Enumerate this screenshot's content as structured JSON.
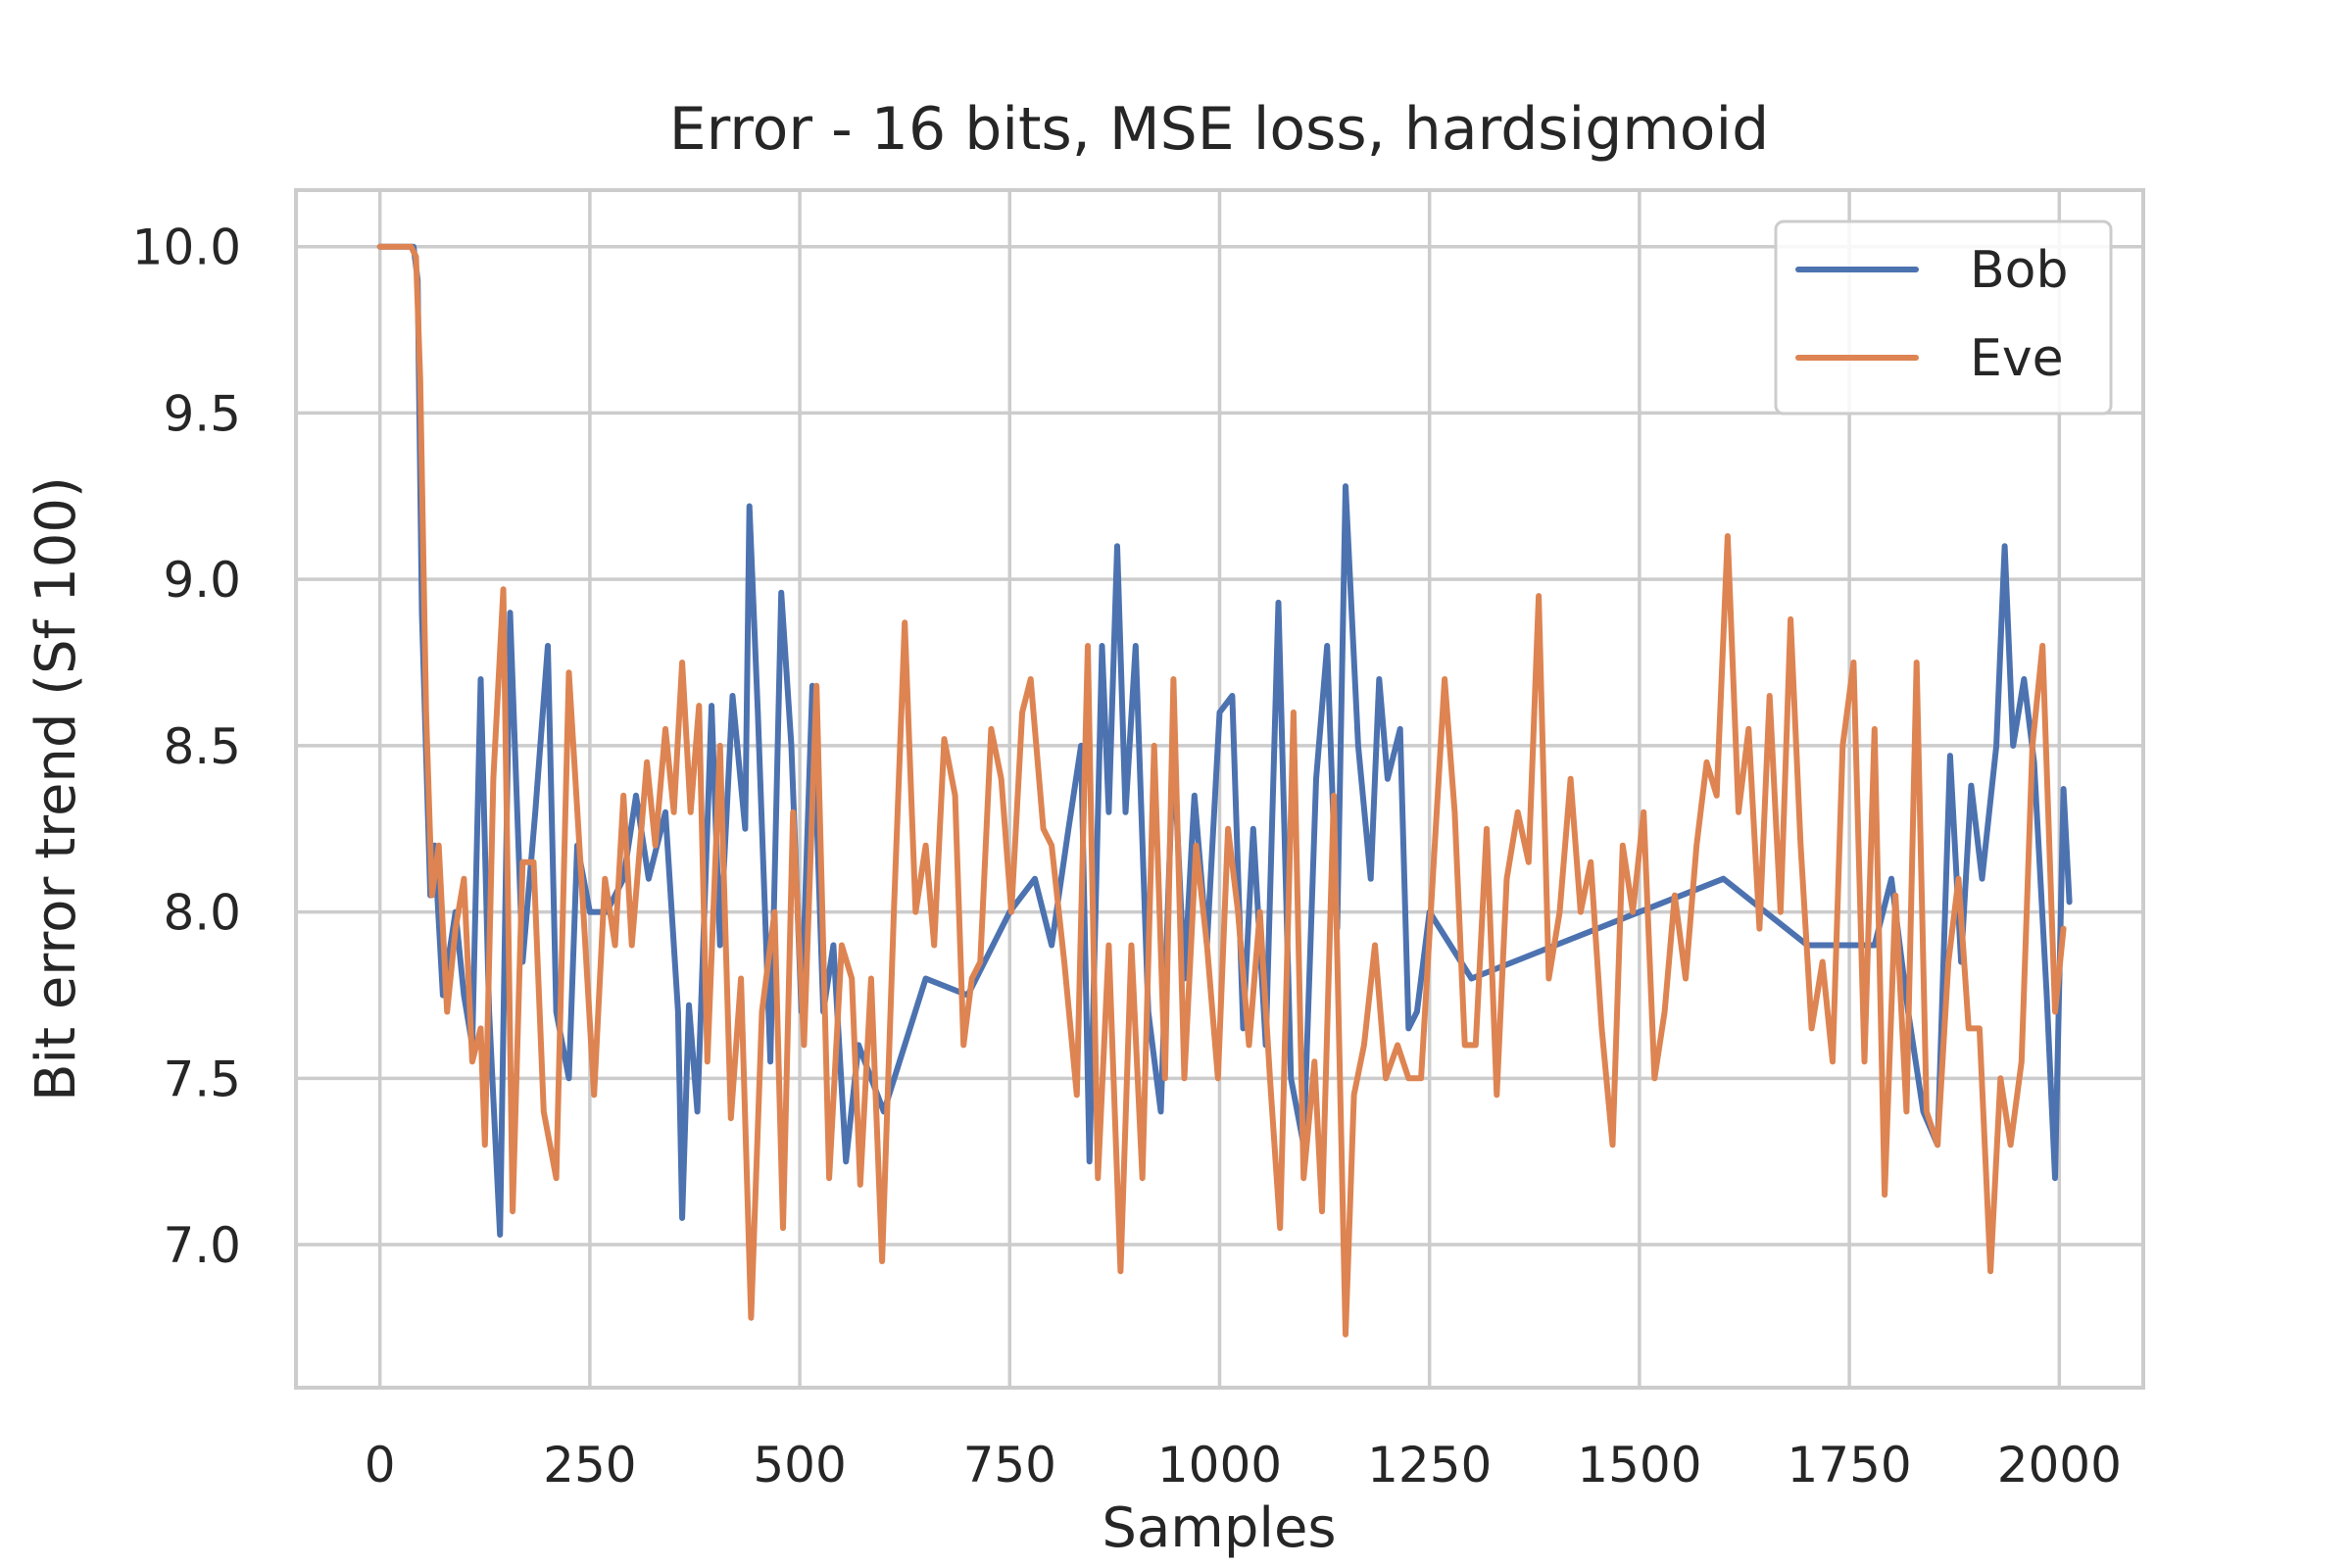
{
  "chart_data": {
    "type": "line",
    "title": "Error - 16 bits, MSE loss, hardsigmoid",
    "xlabel": "Samples",
    "ylabel": "Bit error trend (Sf 100)",
    "xlim": [
      -100,
      2100
    ],
    "ylim": [
      6.57,
      10.17
    ],
    "xticks": [
      0,
      250,
      500,
      750,
      1000,
      1250,
      1500,
      1750,
      2000
    ],
    "xtick_labels": [
      "0",
      "250",
      "500",
      "750",
      "1000",
      "1250",
      "1500",
      "1750",
      "2000"
    ],
    "yticks": [
      7.0,
      7.5,
      8.0,
      8.5,
      9.0,
      9.5,
      10.0
    ],
    "ytick_labels": [
      "7.0",
      "7.5",
      "8.0",
      "8.5",
      "9.0",
      "9.5",
      "10.0"
    ],
    "grid": true,
    "legend_position": "top-right",
    "series": [
      {
        "name": "Bob",
        "color": "#4c72b0",
        "points": [
          [
            0,
            10.0
          ],
          [
            40,
            10.0
          ],
          [
            45,
            9.9
          ],
          [
            50,
            8.9
          ],
          [
            60,
            8.05
          ],
          [
            65,
            8.2
          ],
          [
            75,
            7.75
          ],
          [
            90,
            8.0
          ],
          [
            100,
            7.75
          ],
          [
            110,
            7.6
          ],
          [
            120,
            8.7
          ],
          [
            130,
            7.7
          ],
          [
            143,
            7.03
          ],
          [
            155,
            8.9
          ],
          [
            170,
            7.85
          ],
          [
            185,
            8.3
          ],
          [
            200,
            8.8
          ],
          [
            210,
            7.7
          ],
          [
            225,
            7.5
          ],
          [
            235,
            8.2
          ],
          [
            250,
            8.0
          ],
          [
            270,
            8.0
          ],
          [
            290,
            8.1
          ],
          [
            305,
            8.35
          ],
          [
            320,
            8.1
          ],
          [
            340,
            8.3
          ],
          [
            355,
            7.7
          ],
          [
            360,
            7.08
          ],
          [
            368,
            7.72
          ],
          [
            378,
            7.4
          ],
          [
            395,
            8.62
          ],
          [
            405,
            7.9
          ],
          [
            420,
            8.65
          ],
          [
            435,
            8.25
          ],
          [
            440,
            9.22
          ],
          [
            450,
            8.6
          ],
          [
            465,
            7.55
          ],
          [
            478,
            8.96
          ],
          [
            490,
            8.5
          ],
          [
            502,
            7.7
          ],
          [
            515,
            8.68
          ],
          [
            528,
            7.7
          ],
          [
            540,
            7.9
          ],
          [
            555,
            7.25
          ],
          [
            570,
            7.6
          ],
          [
            600,
            7.4
          ],
          [
            650,
            7.8
          ],
          [
            700,
            7.75
          ],
          [
            750,
            8.0
          ],
          [
            780,
            8.1
          ],
          [
            800,
            7.9
          ],
          [
            820,
            8.25
          ],
          [
            835,
            8.5
          ],
          [
            845,
            7.25
          ],
          [
            860,
            8.8
          ],
          [
            868,
            8.3
          ],
          [
            878,
            9.1
          ],
          [
            888,
            8.3
          ],
          [
            900,
            8.8
          ],
          [
            915,
            7.7
          ],
          [
            930,
            7.4
          ],
          [
            945,
            8.5
          ],
          [
            958,
            7.8
          ],
          [
            970,
            8.35
          ],
          [
            985,
            7.9
          ],
          [
            1000,
            8.6
          ],
          [
            1015,
            8.65
          ],
          [
            1028,
            7.65
          ],
          [
            1040,
            8.25
          ],
          [
            1055,
            7.6
          ],
          [
            1070,
            8.93
          ],
          [
            1085,
            7.5
          ],
          [
            1100,
            7.3
          ],
          [
            1115,
            8.4
          ],
          [
            1128,
            8.8
          ],
          [
            1140,
            7.95
          ],
          [
            1150,
            9.28
          ],
          [
            1165,
            8.5
          ],
          [
            1180,
            8.1
          ],
          [
            1190,
            8.7
          ],
          [
            1200,
            8.4
          ],
          [
            1215,
            8.55
          ],
          [
            1225,
            7.65
          ],
          [
            1235,
            7.7
          ],
          [
            1250,
            8.0
          ],
          [
            1300,
            7.8
          ],
          [
            1400,
            7.9
          ],
          [
            1500,
            8.0
          ],
          [
            1600,
            8.1
          ],
          [
            1700,
            7.9
          ],
          [
            1780,
            7.9
          ],
          [
            1800,
            8.1
          ],
          [
            1820,
            7.7
          ],
          [
            1838,
            7.4
          ],
          [
            1855,
            7.3
          ],
          [
            1870,
            8.47
          ],
          [
            1883,
            7.85
          ],
          [
            1895,
            8.38
          ],
          [
            1908,
            8.1
          ],
          [
            1925,
            8.5
          ],
          [
            1935,
            9.1
          ],
          [
            1945,
            8.5
          ],
          [
            1958,
            8.7
          ],
          [
            1970,
            8.45
          ],
          [
            1985,
            7.75
          ],
          [
            1995,
            7.2
          ],
          [
            2005,
            8.37
          ],
          [
            2012,
            8.03
          ]
        ]
      },
      {
        "name": "Eve",
        "color": "#dd8452",
        "points": [
          [
            0,
            10.0
          ],
          [
            37,
            10.0
          ],
          [
            43,
            9.97
          ],
          [
            48,
            9.6
          ],
          [
            55,
            8.6
          ],
          [
            62,
            8.05
          ],
          [
            70,
            8.2
          ],
          [
            80,
            7.7
          ],
          [
            90,
            7.95
          ],
          [
            100,
            8.1
          ],
          [
            110,
            7.55
          ],
          [
            120,
            7.65
          ],
          [
            125,
            7.3
          ],
          [
            135,
            8.4
          ],
          [
            147,
            8.97
          ],
          [
            158,
            7.1
          ],
          [
            170,
            8.15
          ],
          [
            183,
            8.15
          ],
          [
            195,
            7.4
          ],
          [
            210,
            7.2
          ],
          [
            225,
            8.72
          ],
          [
            240,
            8.1
          ],
          [
            255,
            7.45
          ],
          [
            268,
            8.1
          ],
          [
            280,
            7.9
          ],
          [
            290,
            8.35
          ],
          [
            300,
            7.9
          ],
          [
            318,
            8.45
          ],
          [
            328,
            8.2
          ],
          [
            340,
            8.55
          ],
          [
            350,
            8.3
          ],
          [
            360,
            8.75
          ],
          [
            370,
            8.3
          ],
          [
            380,
            8.62
          ],
          [
            390,
            7.55
          ],
          [
            405,
            8.5
          ],
          [
            418,
            7.38
          ],
          [
            430,
            7.8
          ],
          [
            442,
            6.78
          ],
          [
            455,
            7.7
          ],
          [
            470,
            8.0
          ],
          [
            480,
            7.05
          ],
          [
            492,
            8.3
          ],
          [
            505,
            7.6
          ],
          [
            520,
            8.68
          ],
          [
            535,
            7.2
          ],
          [
            550,
            7.9
          ],
          [
            562,
            7.8
          ],
          [
            572,
            7.18
          ],
          [
            585,
            7.8
          ],
          [
            598,
            6.95
          ],
          [
            612,
            8.0
          ],
          [
            625,
            8.87
          ],
          [
            638,
            8.0
          ],
          [
            650,
            8.2
          ],
          [
            660,
            7.9
          ],
          [
            672,
            8.52
          ],
          [
            685,
            8.35
          ],
          [
            695,
            7.6
          ],
          [
            705,
            7.8
          ],
          [
            715,
            7.85
          ],
          [
            728,
            8.55
          ],
          [
            740,
            8.4
          ],
          [
            752,
            8.0
          ],
          [
            765,
            8.6
          ],
          [
            775,
            8.7
          ],
          [
            790,
            8.25
          ],
          [
            800,
            8.2
          ],
          [
            815,
            7.85
          ],
          [
            830,
            7.45
          ],
          [
            843,
            8.8
          ],
          [
            855,
            7.2
          ],
          [
            868,
            7.9
          ],
          [
            882,
            6.92
          ],
          [
            895,
            7.9
          ],
          [
            908,
            7.2
          ],
          [
            922,
            8.5
          ],
          [
            935,
            7.5
          ],
          [
            945,
            8.7
          ],
          [
            958,
            7.5
          ],
          [
            972,
            8.2
          ],
          [
            985,
            7.9
          ],
          [
            998,
            7.5
          ],
          [
            1010,
            8.25
          ],
          [
            1022,
            8.0
          ],
          [
            1035,
            7.6
          ],
          [
            1048,
            8.0
          ],
          [
            1060,
            7.5
          ],
          [
            1072,
            7.05
          ],
          [
            1088,
            8.6
          ],
          [
            1100,
            7.2
          ],
          [
            1113,
            7.55
          ],
          [
            1122,
            7.1
          ],
          [
            1136,
            8.35
          ],
          [
            1150,
            6.73
          ],
          [
            1160,
            7.45
          ],
          [
            1172,
            7.6
          ],
          [
            1185,
            7.9
          ],
          [
            1198,
            7.5
          ],
          [
            1212,
            7.6
          ],
          [
            1225,
            7.5
          ],
          [
            1240,
            7.5
          ],
          [
            1255,
            8.15
          ],
          [
            1268,
            8.7
          ],
          [
            1280,
            8.3
          ],
          [
            1292,
            7.6
          ],
          [
            1305,
            7.6
          ],
          [
            1318,
            8.25
          ],
          [
            1330,
            7.45
          ],
          [
            1342,
            8.1
          ],
          [
            1355,
            8.3
          ],
          [
            1368,
            8.15
          ],
          [
            1380,
            8.95
          ],
          [
            1392,
            7.8
          ],
          [
            1405,
            8.0
          ],
          [
            1418,
            8.4
          ],
          [
            1430,
            8.0
          ],
          [
            1442,
            8.15
          ],
          [
            1455,
            7.65
          ],
          [
            1468,
            7.3
          ],
          [
            1480,
            8.2
          ],
          [
            1492,
            8.0
          ],
          [
            1505,
            8.3
          ],
          [
            1518,
            7.5
          ],
          [
            1530,
            7.7
          ],
          [
            1542,
            8.05
          ],
          [
            1555,
            7.8
          ],
          [
            1568,
            8.2
          ],
          [
            1580,
            8.45
          ],
          [
            1592,
            8.35
          ],
          [
            1605,
            9.13
          ],
          [
            1618,
            8.3
          ],
          [
            1630,
            8.55
          ],
          [
            1643,
            7.95
          ],
          [
            1655,
            8.65
          ],
          [
            1668,
            8.0
          ],
          [
            1680,
            8.88
          ],
          [
            1692,
            8.2
          ],
          [
            1705,
            7.65
          ],
          [
            1718,
            7.85
          ],
          [
            1730,
            7.55
          ],
          [
            1742,
            8.5
          ],
          [
            1755,
            8.75
          ],
          [
            1768,
            7.55
          ],
          [
            1780,
            8.55
          ],
          [
            1792,
            7.15
          ],
          [
            1805,
            8.05
          ],
          [
            1818,
            7.4
          ],
          [
            1830,
            8.75
          ],
          [
            1842,
            7.4
          ],
          [
            1855,
            7.3
          ],
          [
            1868,
            7.85
          ],
          [
            1880,
            8.1
          ],
          [
            1892,
            7.65
          ],
          [
            1905,
            7.65
          ],
          [
            1918,
            6.92
          ],
          [
            1930,
            7.5
          ],
          [
            1942,
            7.3
          ],
          [
            1955,
            7.55
          ],
          [
            1968,
            8.5
          ],
          [
            1980,
            8.8
          ],
          [
            1995,
            7.7
          ],
          [
            2005,
            7.95
          ]
        ]
      }
    ]
  }
}
